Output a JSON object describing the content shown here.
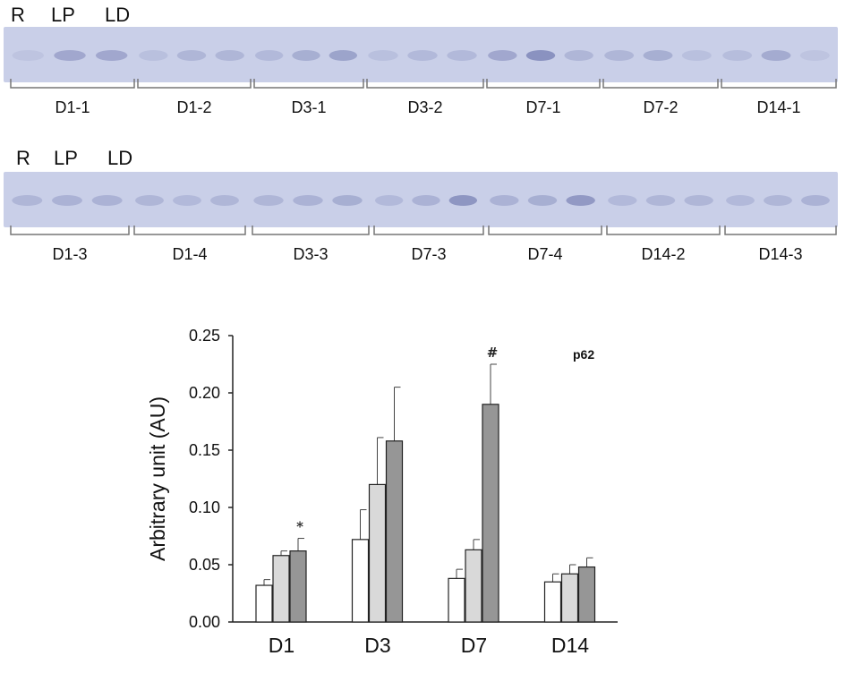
{
  "blot_top": {
    "lane_labels": [
      "R",
      "LP",
      "LD"
    ],
    "groups": [
      "D1-1",
      "D1-2",
      "D3-1",
      "D3-2",
      "D7-1",
      "D7-2",
      "D14-1"
    ]
  },
  "blot_bottom": {
    "lane_labels": [
      "R",
      "LP",
      "LD"
    ],
    "groups": [
      "D1-3",
      "D1-4",
      "D3-3",
      "D7-3",
      "D7-4",
      "D14-2",
      "D14-3"
    ]
  },
  "colors": {
    "blot_bg": "#c9cfe8",
    "band": "#7f87b8",
    "bar_R": "#ffffff",
    "bar_LP": "#d9d9d9",
    "bar_LD": "#969696"
  },
  "chart_data": {
    "type": "bar",
    "title": "p62",
    "xlabel": "",
    "ylabel": "Arbitrary unit (AU)",
    "categories": [
      "D1",
      "D3",
      "D7",
      "D14"
    ],
    "ylim": [
      0,
      0.25
    ],
    "yticks": [
      "0.00",
      "0.05",
      "0.10",
      "0.15",
      "0.20",
      "0.25"
    ],
    "grid": false,
    "series": [
      {
        "values": [
          0.032,
          0.072,
          0.038,
          0.035
        ],
        "errors": [
          0.005,
          0.026,
          0.008,
          0.007
        ]
      },
      {
        "values": [
          0.058,
          0.12,
          0.063,
          0.042
        ],
        "errors": [
          0.004,
          0.041,
          0.009,
          0.008
        ]
      },
      {
        "values": [
          0.062,
          0.158,
          0.19,
          0.048
        ],
        "errors": [
          0.011,
          0.047,
          0.035,
          0.008
        ]
      }
    ],
    "annotations": [
      {
        "category": "D1",
        "series": 2,
        "text": "*"
      },
      {
        "category": "D7",
        "series": 2,
        "text": "#"
      }
    ]
  }
}
